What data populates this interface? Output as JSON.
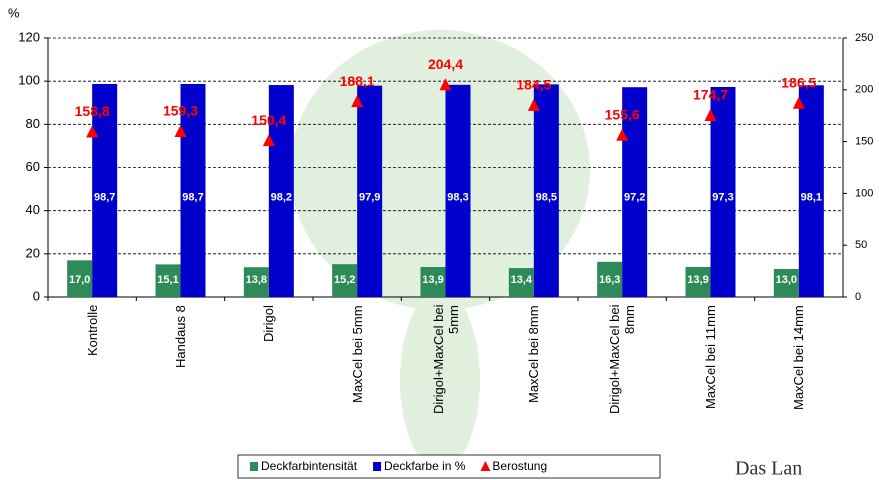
{
  "chart_data": {
    "type": "bar",
    "y_unit": "%",
    "categories": [
      "Kontrolle",
      "Handaus 8",
      "Dirigol",
      "MaxCel bei 5mm",
      "Dirigol+MaxCel bei 5mm",
      "MaxCel bei 8mm",
      "Dirigol+MaxCel bei 8mm",
      "MaxCel bei 11mm",
      "MaxCel bei 14mm"
    ],
    "series": [
      {
        "name": "Deckfarbintensität",
        "color": "#2e8b57",
        "values": [
          17.0,
          15.1,
          13.8,
          15.2,
          13.9,
          13.4,
          16.3,
          13.9,
          13.0
        ],
        "value_labels": [
          "17,0",
          "15,1",
          "13,8",
          "15,2",
          "13,9",
          "13,4",
          "16,3",
          "13,9",
          "13,0"
        ]
      },
      {
        "name": "Deckfarbe in %",
        "color": "#0000cc",
        "values": [
          98.7,
          98.7,
          98.2,
          97.9,
          98.3,
          98.5,
          97.2,
          97.3,
          98.1
        ],
        "value_labels": [
          "98,7",
          "98,7",
          "98,2",
          "97,9",
          "98,3",
          "98,5",
          "97,2",
          "97,3",
          "98,1"
        ]
      },
      {
        "name": "Berostung",
        "color": "#ff0000",
        "axis": "y2",
        "marker": "triangle",
        "values": [
          158.8,
          159.3,
          150.4,
          188.1,
          204.4,
          184.5,
          155.6,
          174.7,
          186.5
        ],
        "value_labels": [
          "158,8",
          "159,3",
          "150,4",
          "188,1",
          "204,4",
          "184,5",
          "155,6",
          "174,7",
          "186,5"
        ]
      }
    ],
    "ylim": [
      0,
      120
    ],
    "yticks": [
      0,
      20,
      40,
      60,
      80,
      100,
      120
    ],
    "y2lim": [
      0,
      250
    ],
    "y2ticks": [
      0,
      50,
      100,
      150,
      200,
      250
    ],
    "grid": true,
    "legend": "bottom",
    "logo_text": "Das Lan"
  }
}
